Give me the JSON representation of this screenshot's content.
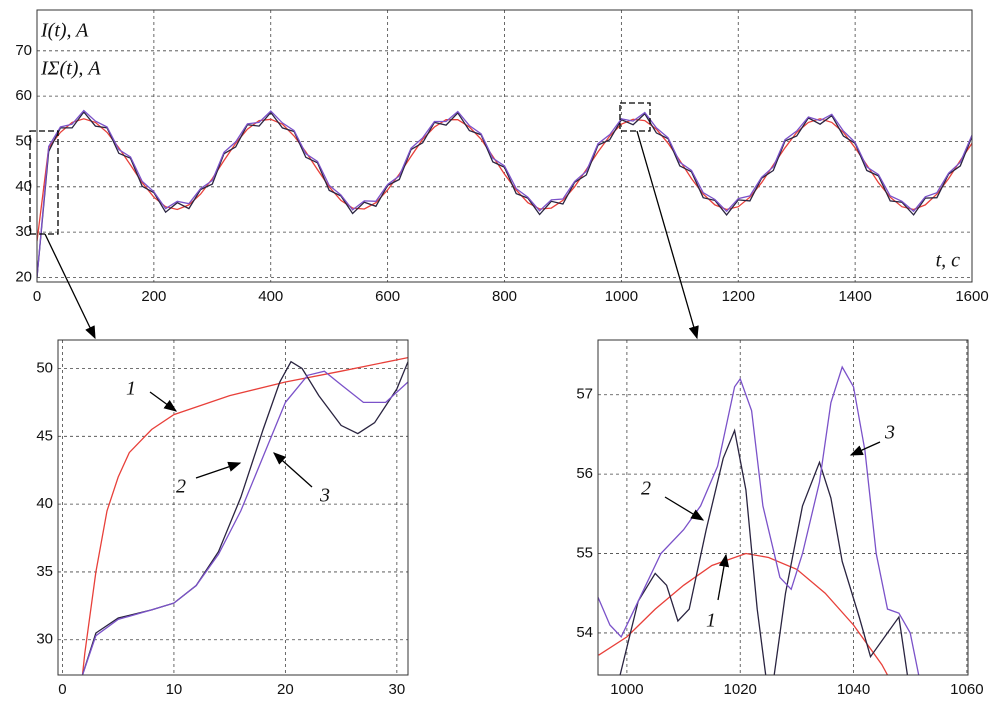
{
  "chart_data": [
    {
      "type": "line",
      "ylabels": [
        "I(t), A",
        "IΣ(t), A"
      ],
      "xlabel": "t, c",
      "xlim": [
        0,
        1600
      ],
      "ylim": [
        19,
        79
      ],
      "xticks": [
        0,
        200,
        400,
        600,
        800,
        1000,
        1200,
        1400,
        1600
      ],
      "yticks": [
        20,
        30,
        40,
        50,
        60,
        70
      ],
      "grid": true,
      "x": [
        0,
        20,
        40,
        60,
        80,
        100,
        120,
        140,
        160,
        180,
        200,
        220,
        240,
        260,
        280,
        300,
        320,
        340,
        360,
        380,
        400,
        420,
        440,
        460,
        480,
        500,
        520,
        540,
        560,
        580,
        600,
        620,
        640,
        660,
        680,
        700,
        720,
        740,
        760,
        780,
        800,
        820,
        840,
        860,
        880,
        900,
        920,
        940,
        960,
        980,
        1000,
        1020,
        1040,
        1060,
        1080,
        1100,
        1120,
        1140,
        1160,
        1180,
        1200,
        1220,
        1240,
        1260,
        1280,
        1300,
        1320,
        1340,
        1360,
        1380,
        1400,
        1420,
        1440,
        1460,
        1480,
        1500,
        1520,
        1540,
        1560,
        1580,
        1600
      ],
      "series": [
        {
          "color": "#e8403a",
          "values": [
            28,
            48.6,
            52.0,
            54.2,
            55,
            54.2,
            52.0,
            48.6,
            44.8,
            40.9,
            37.7,
            35.6,
            35.0,
            36.0,
            38.4,
            41.8,
            45.8,
            49.6,
            52.7,
            54.6,
            54.9,
            53.8,
            51.2,
            47.7,
            43.8,
            40.0,
            37.0,
            35.3,
            35.1,
            36.5,
            39.3,
            42.8,
            46.7,
            50.5,
            53.2,
            54.8,
            54.8,
            53.2,
            50.5,
            46.7,
            42.8,
            39.3,
            36.5,
            35.1,
            35.3,
            37.0,
            40.0,
            43.8,
            47.7,
            51.2,
            53.8,
            54.9,
            54.6,
            52.7,
            49.6,
            45.8,
            41.8,
            38.4,
            36.0,
            35.0,
            35.6,
            37.7,
            40.9,
            44.8,
            48.6,
            52.0,
            54.2,
            55.0,
            54.2,
            52.0,
            48.6,
            44.8,
            40.9,
            37.7,
            35.6,
            35.0,
            36.0,
            38.4,
            41.8,
            45.8,
            49.6
          ]
        },
        {
          "color": "#2a2440",
          "values": [
            20,
            47.8,
            53.0,
            53.0,
            56.5,
            53.4,
            53.0,
            47.4,
            46.3,
            40.1,
            38.7,
            34.4,
            36.5,
            35.2,
            39.4,
            40.6,
            47.3,
            48.8,
            53.7,
            53.4,
            56.4,
            53.0,
            52.2,
            46.5,
            45.3,
            39.2,
            38.0,
            34.1,
            36.6,
            35.7,
            40.3,
            41.6,
            48.2,
            49.7,
            54.2,
            53.6,
            56.3,
            52.4,
            51.5,
            45.5,
            44.3,
            38.5,
            37.5,
            33.9,
            36.8,
            36.2,
            41.0,
            42.6,
            49.2,
            50.4,
            54.8,
            53.7,
            56.1,
            51.9,
            50.6,
            44.6,
            43.3,
            37.6,
            37.0,
            33.8,
            37.1,
            36.9,
            41.9,
            43.6,
            50.1,
            51.2,
            55.2,
            53.8,
            55.7,
            51.2,
            49.6,
            43.6,
            42.4,
            36.9,
            36.6,
            33.8,
            37.5,
            37.6,
            42.8,
            44.6,
            51.1
          ]
        },
        {
          "color": "#7b52c9",
          "values": [
            20,
            48.9,
            53.2,
            53.8,
            56.8,
            54.5,
            53.2,
            48.2,
            46.6,
            41.2,
            38.9,
            35.2,
            36.8,
            36.3,
            39.6,
            41.4,
            47.6,
            49.9,
            53.9,
            54.2,
            56.7,
            54.1,
            52.4,
            47.3,
            45.6,
            40.3,
            38.2,
            34.9,
            36.9,
            36.8,
            40.5,
            42.4,
            48.5,
            50.8,
            54.4,
            54.4,
            56.6,
            53.5,
            51.7,
            46.3,
            44.6,
            39.6,
            37.7,
            34.7,
            37.1,
            37.3,
            41.2,
            43.4,
            49.5,
            51.5,
            55.0,
            54.5,
            56.4,
            53.0,
            50.8,
            45.4,
            43.6,
            38.7,
            37.2,
            34.6,
            37.4,
            38.0,
            42.1,
            44.4,
            50.4,
            52.3,
            55.4,
            54.6,
            56.0,
            52.3,
            49.8,
            44.4,
            42.7,
            38.0,
            36.8,
            34.6,
            37.8,
            38.7,
            43.0,
            45.4,
            51.4
          ]
        }
      ]
    },
    {
      "type": "line",
      "xlim": [
        -0.4,
        31
      ],
      "ylim": [
        27.4,
        52.1
      ],
      "xticks": [
        0,
        10,
        20,
        30
      ],
      "yticks": [
        30,
        35,
        40,
        45,
        50
      ],
      "grid": true,
      "annotations": [
        "1",
        "2",
        "3"
      ],
      "series": [
        {
          "color": "#e8403a",
          "x": [
            1.8,
            2,
            3,
            4,
            5,
            6,
            8,
            10,
            15,
            20,
            25,
            31
          ],
          "values": [
            27.4,
            29,
            35,
            39.5,
            42,
            43.8,
            45.5,
            46.6,
            48,
            49,
            49.8,
            50.8
          ]
        },
        {
          "color": "#2a2440",
          "x": [
            1.8,
            3,
            5,
            8,
            10,
            12,
            14,
            16,
            18,
            19.5,
            20.5,
            21.5,
            23,
            25,
            26.5,
            28,
            30,
            31
          ],
          "values": [
            27.4,
            30.5,
            31.6,
            32.2,
            32.7,
            34,
            36.5,
            40.5,
            45.5,
            49,
            50.5,
            50,
            48,
            45.8,
            45.2,
            46,
            48.5,
            50.5
          ]
        },
        {
          "color": "#7b52c9",
          "x": [
            1.8,
            3,
            5,
            8,
            10,
            12,
            14,
            16,
            18,
            20,
            22,
            23.5,
            25,
            27,
            29,
            31
          ],
          "values": [
            27.4,
            30.3,
            31.5,
            32.2,
            32.7,
            34,
            36.3,
            39.5,
            43.5,
            47.5,
            49.5,
            49.8,
            48.8,
            47.5,
            47.5,
            49
          ]
        }
      ]
    },
    {
      "type": "line",
      "xlim": [
        994.9,
        1060.2
      ],
      "ylim": [
        53.47,
        57.69
      ],
      "xticks": [
        1000,
        1020,
        1040,
        1060
      ],
      "yticks": [
        54,
        55,
        56,
        57
      ],
      "grid": true,
      "annotations": [
        "2",
        "1",
        "3"
      ],
      "series": [
        {
          "color": "#e8403a",
          "x": [
            995,
            1000,
            1005,
            1010,
            1015,
            1021,
            1025,
            1030,
            1035,
            1040,
            1045,
            1046
          ],
          "values": [
            53.72,
            53.95,
            54.3,
            54.6,
            54.85,
            55.0,
            54.95,
            54.8,
            54.5,
            54.1,
            53.6,
            53.47
          ]
        },
        {
          "color": "#2a2440",
          "x": [
            998.8,
            1002,
            1005,
            1007,
            1009,
            1011,
            1014,
            1017,
            1019,
            1021,
            1023,
            1024.5,
            1025,
            1026,
            1028,
            1031,
            1034,
            1036,
            1038,
            1041,
            1043,
            1046,
            1048,
            1049.5
          ],
          "values": [
            53.47,
            54.4,
            54.75,
            54.6,
            54.15,
            54.3,
            55.3,
            56.2,
            56.55,
            55.8,
            54.3,
            53.47,
            null,
            53.47,
            54.5,
            55.6,
            56.15,
            55.7,
            54.9,
            54.2,
            53.7,
            54.0,
            54.2,
            53.47
          ]
        },
        {
          "color": "#7b52c9",
          "x": [
            994.9,
            997,
            999,
            1002,
            1006,
            1010,
            1013,
            1016,
            1019,
            1020,
            1022,
            1024,
            1027,
            1029,
            1031,
            1034,
            1036,
            1038,
            1040,
            1042,
            1044,
            1046,
            1048,
            1050,
            1051.5
          ],
          "values": [
            54.45,
            54.1,
            53.95,
            54.4,
            55.0,
            55.3,
            55.6,
            56.1,
            57.1,
            57.2,
            56.8,
            55.6,
            54.7,
            54.55,
            55.0,
            55.9,
            56.9,
            57.35,
            57.1,
            56.3,
            55.0,
            54.3,
            54.25,
            54.0,
            53.47
          ]
        }
      ]
    }
  ]
}
